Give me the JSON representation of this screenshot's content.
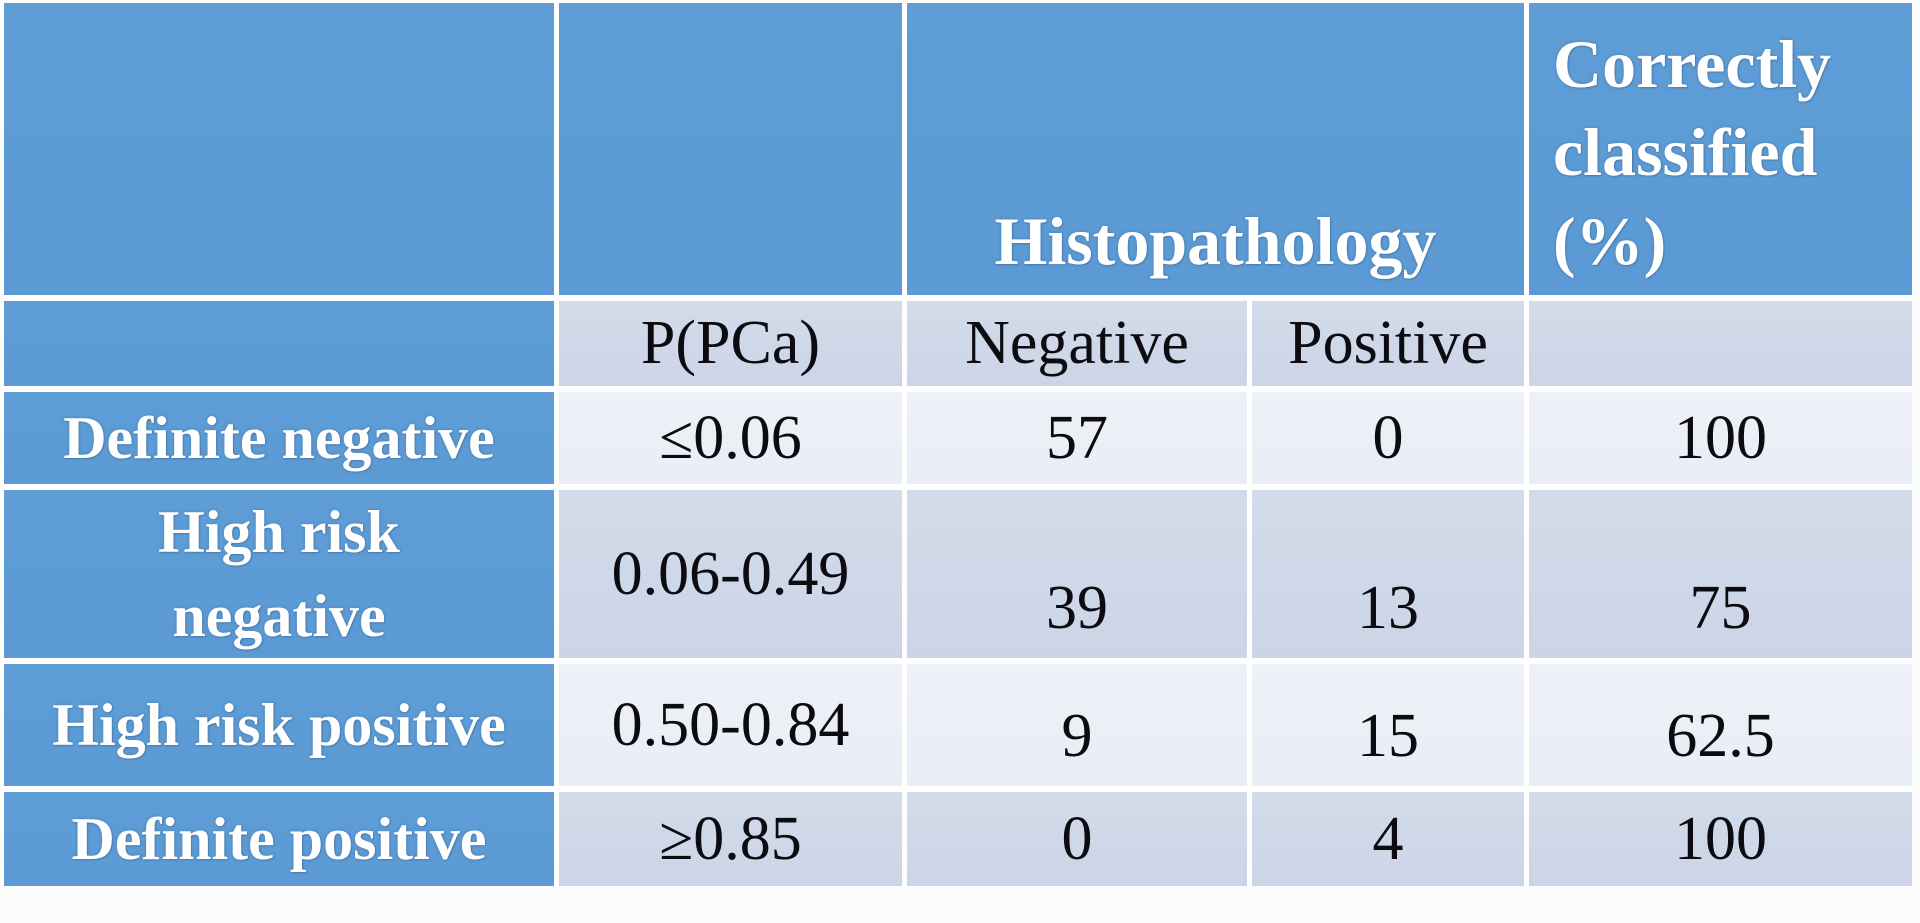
{
  "page": {
    "background": "#fcfcfd"
  },
  "table": {
    "title_row": {
      "histopathology": "Histopathology",
      "correctly_classified": "Correctly classified (%)"
    },
    "subheader": {
      "p_pca": "P(PCa)",
      "negative": "Negative",
      "positive": "Positive"
    },
    "rows": [
      {
        "label": "Definite negative",
        "p_pca": "≤0.06",
        "negative": "57",
        "positive": "0",
        "correctly_classified": "100"
      },
      {
        "label": "High risk\nnegative",
        "p_pca": "0.06-0.49",
        "negative": "39",
        "positive": "13",
        "correctly_classified": "75"
      },
      {
        "label": "High risk positive",
        "p_pca": "0.50-0.84",
        "negative": "9",
        "positive": "15",
        "correctly_classified": "62.5"
      },
      {
        "label": "Definite positive",
        "p_pca": "≥0.85",
        "negative": "0",
        "positive": "4",
        "correctly_classified": "100"
      }
    ],
    "colors": {
      "header_blue": "#5b9ad4",
      "header_blue_light": "#5e9dd6",
      "band_dark": "#ccd5e7",
      "band_light": "#e9edf5",
      "grid_line": "#ffffff"
    }
  }
}
